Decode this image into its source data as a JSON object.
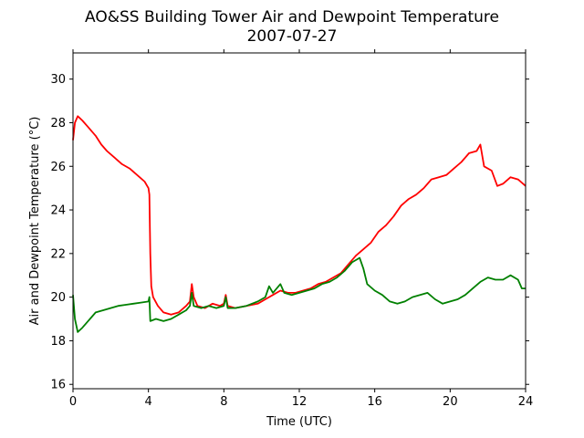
{
  "chart_data": {
    "type": "line",
    "title_line1": "AO&SS Building Tower Air and Dewpoint Temperature",
    "title_line2": "2007-07-27",
    "xlabel": "Time (UTC)",
    "ylabel": "Air and Dewpoint Temperature (°C)",
    "xlim": [
      0,
      24
    ],
    "ylim": [
      15.8,
      31.2
    ],
    "xticks": [
      0,
      4,
      8,
      12,
      16,
      20,
      24
    ],
    "yticks": [
      16,
      18,
      20,
      22,
      24,
      26,
      28,
      30
    ],
    "grid": false,
    "series": [
      {
        "color": "#ff0000",
        "points": [
          [
            0.0,
            27.2
          ],
          [
            0.1,
            28.0
          ],
          [
            0.25,
            28.3
          ],
          [
            0.5,
            28.1
          ],
          [
            0.8,
            27.8
          ],
          [
            1.2,
            27.4
          ],
          [
            1.5,
            27.0
          ],
          [
            1.8,
            26.7
          ],
          [
            2.2,
            26.4
          ],
          [
            2.6,
            26.1
          ],
          [
            3.0,
            25.9
          ],
          [
            3.4,
            25.6
          ],
          [
            3.8,
            25.3
          ],
          [
            4.0,
            25.0
          ],
          [
            4.05,
            24.7
          ],
          [
            4.1,
            22.0
          ],
          [
            4.15,
            20.5
          ],
          [
            4.25,
            20.0
          ],
          [
            4.5,
            19.6
          ],
          [
            4.8,
            19.3
          ],
          [
            5.2,
            19.2
          ],
          [
            5.6,
            19.3
          ],
          [
            6.0,
            19.6
          ],
          [
            6.2,
            19.8
          ],
          [
            6.3,
            20.6
          ],
          [
            6.4,
            20.0
          ],
          [
            6.6,
            19.6
          ],
          [
            7.0,
            19.5
          ],
          [
            7.4,
            19.7
          ],
          [
            7.8,
            19.6
          ],
          [
            8.0,
            19.7
          ],
          [
            8.1,
            20.1
          ],
          [
            8.2,
            19.6
          ],
          [
            8.6,
            19.5
          ],
          [
            9.2,
            19.6
          ],
          [
            9.8,
            19.7
          ],
          [
            10.2,
            19.9
          ],
          [
            10.6,
            20.1
          ],
          [
            11.0,
            20.3
          ],
          [
            11.4,
            20.2
          ],
          [
            11.8,
            20.2
          ],
          [
            12.2,
            20.3
          ],
          [
            12.6,
            20.4
          ],
          [
            13.0,
            20.6
          ],
          [
            13.4,
            20.7
          ],
          [
            13.8,
            20.9
          ],
          [
            14.2,
            21.1
          ],
          [
            14.6,
            21.5
          ],
          [
            15.0,
            21.9
          ],
          [
            15.4,
            22.2
          ],
          [
            15.8,
            22.5
          ],
          [
            16.2,
            23.0
          ],
          [
            16.6,
            23.3
          ],
          [
            17.0,
            23.7
          ],
          [
            17.4,
            24.2
          ],
          [
            17.8,
            24.5
          ],
          [
            18.2,
            24.7
          ],
          [
            18.6,
            25.0
          ],
          [
            19.0,
            25.4
          ],
          [
            19.4,
            25.5
          ],
          [
            19.8,
            25.6
          ],
          [
            20.2,
            25.9
          ],
          [
            20.6,
            26.2
          ],
          [
            21.0,
            26.6
          ],
          [
            21.4,
            26.7
          ],
          [
            21.6,
            27.0
          ],
          [
            21.8,
            26.0
          ],
          [
            22.2,
            25.8
          ],
          [
            22.5,
            25.1
          ],
          [
            22.8,
            25.2
          ],
          [
            23.2,
            25.5
          ],
          [
            23.6,
            25.4
          ],
          [
            24.0,
            25.1
          ]
        ]
      },
      {
        "color": "#008000",
        "points": [
          [
            0.0,
            20.1
          ],
          [
            0.1,
            19.0
          ],
          [
            0.25,
            18.4
          ],
          [
            0.5,
            18.6
          ],
          [
            0.8,
            18.9
          ],
          [
            1.0,
            19.1
          ],
          [
            1.2,
            19.3
          ],
          [
            1.6,
            19.4
          ],
          [
            2.0,
            19.5
          ],
          [
            2.4,
            19.6
          ],
          [
            2.8,
            19.65
          ],
          [
            3.2,
            19.7
          ],
          [
            3.6,
            19.75
          ],
          [
            4.0,
            19.8
          ],
          [
            4.05,
            20.0
          ],
          [
            4.1,
            18.9
          ],
          [
            4.4,
            19.0
          ],
          [
            4.8,
            18.9
          ],
          [
            5.2,
            19.0
          ],
          [
            5.6,
            19.2
          ],
          [
            6.0,
            19.4
          ],
          [
            6.2,
            19.6
          ],
          [
            6.3,
            20.2
          ],
          [
            6.4,
            19.6
          ],
          [
            6.8,
            19.5
          ],
          [
            7.2,
            19.6
          ],
          [
            7.6,
            19.5
          ],
          [
            8.0,
            19.6
          ],
          [
            8.1,
            20.0
          ],
          [
            8.2,
            19.5
          ],
          [
            8.6,
            19.5
          ],
          [
            9.2,
            19.6
          ],
          [
            9.8,
            19.8
          ],
          [
            10.2,
            20.0
          ],
          [
            10.4,
            20.5
          ],
          [
            10.6,
            20.2
          ],
          [
            11.0,
            20.6
          ],
          [
            11.2,
            20.2
          ],
          [
            11.6,
            20.1
          ],
          [
            12.0,
            20.2
          ],
          [
            12.4,
            20.3
          ],
          [
            12.8,
            20.4
          ],
          [
            13.2,
            20.6
          ],
          [
            13.6,
            20.7
          ],
          [
            14.0,
            20.9
          ],
          [
            14.4,
            21.2
          ],
          [
            14.8,
            21.6
          ],
          [
            15.2,
            21.8
          ],
          [
            15.4,
            21.3
          ],
          [
            15.6,
            20.6
          ],
          [
            16.0,
            20.3
          ],
          [
            16.4,
            20.1
          ],
          [
            16.8,
            19.8
          ],
          [
            17.2,
            19.7
          ],
          [
            17.6,
            19.8
          ],
          [
            18.0,
            20.0
          ],
          [
            18.4,
            20.1
          ],
          [
            18.8,
            20.2
          ],
          [
            19.2,
            19.9
          ],
          [
            19.6,
            19.7
          ],
          [
            20.0,
            19.8
          ],
          [
            20.4,
            19.9
          ],
          [
            20.8,
            20.1
          ],
          [
            21.2,
            20.4
          ],
          [
            21.6,
            20.7
          ],
          [
            22.0,
            20.9
          ],
          [
            22.4,
            20.8
          ],
          [
            22.8,
            20.8
          ],
          [
            23.2,
            21.0
          ],
          [
            23.6,
            20.8
          ],
          [
            23.8,
            20.4
          ],
          [
            24.0,
            20.4
          ]
        ]
      }
    ]
  }
}
